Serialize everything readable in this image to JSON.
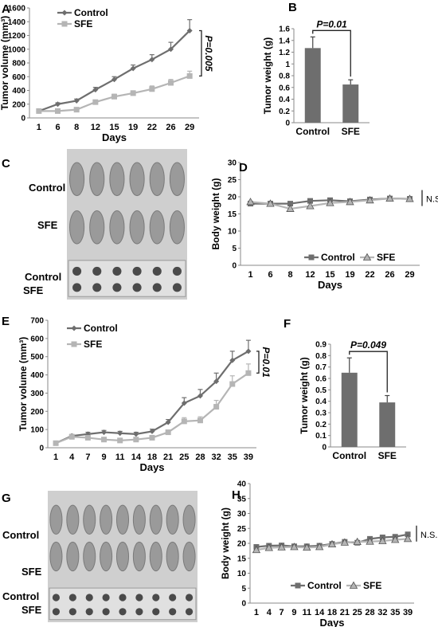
{
  "colors": {
    "control": "#6e6e6e",
    "sfe": "#b5b5b5",
    "axis": "#8a8a8a"
  },
  "panels": [
    {
      "letter": "A",
      "type": "line",
      "xlabel": "Days",
      "ylabel": "Tumor volume (mm³)",
      "annotation": "P=0.005",
      "categories": [
        "1",
        "6",
        "8",
        "12",
        "15",
        "19",
        "22",
        "26",
        "29"
      ],
      "ylim": [
        0,
        1600
      ],
      "yticks": [
        0,
        200,
        400,
        600,
        800,
        1000,
        1200,
        1400,
        1600
      ],
      "series": [
        {
          "name": "Control",
          "marker": "diamond",
          "values": [
            100,
            200,
            250,
            410,
            560,
            720,
            850,
            1000,
            1270
          ],
          "err": [
            0,
            20,
            25,
            35,
            40,
            50,
            70,
            100,
            160
          ]
        },
        {
          "name": "SFE",
          "marker": "square",
          "values": [
            100,
            100,
            120,
            230,
            310,
            360,
            420,
            510,
            610
          ],
          "err": [
            0,
            10,
            15,
            25,
            35,
            35,
            45,
            50,
            70
          ]
        }
      ]
    },
    {
      "letter": "B",
      "type": "bar",
      "ylabel": "Tumor weight (g)",
      "annotation": "P=0.01",
      "categories": [
        "Control",
        "SFE"
      ],
      "values": [
        1.27,
        0.65
      ],
      "err": [
        0.19,
        0.08
      ],
      "ylim": [
        0,
        1.6
      ],
      "yticks": [
        0,
        0.2,
        0.4,
        0.6,
        0.8,
        1,
        1.2,
        1.4,
        1.6
      ]
    },
    {
      "letter": "C",
      "type": "photo",
      "row_labels": [
        "Control",
        "SFE",
        "Control",
        "SFE"
      ]
    },
    {
      "letter": "D",
      "type": "line",
      "xlabel": "Days",
      "ylabel": "Body weight (g)",
      "annotation": "N.S.",
      "categories": [
        "1",
        "6",
        "8",
        "12",
        "15",
        "19",
        "22",
        "26",
        "29"
      ],
      "ylim": [
        0,
        30
      ],
      "yticks": [
        0,
        5,
        10,
        15,
        20,
        25,
        30
      ],
      "series": [
        {
          "name": "Control",
          "marker": "square",
          "values": [
            18.0,
            18.0,
            18.0,
            18.8,
            19.0,
            18.7,
            19.2,
            19.5,
            19.4
          ]
        },
        {
          "name": "SFE",
          "marker": "triangle",
          "values": [
            18.5,
            18.0,
            16.5,
            17.3,
            18.2,
            18.5,
            19.0,
            19.5,
            19.4
          ]
        }
      ]
    },
    {
      "letter": "E",
      "type": "line",
      "xlabel": "Days",
      "ylabel": "Tumor volume (mm³)",
      "annotation": "P=0.01",
      "categories": [
        "1",
        "4",
        "7",
        "9",
        "11",
        "14",
        "18",
        "21",
        "25",
        "28",
        "32",
        "35",
        "39"
      ],
      "ylim": [
        0,
        700
      ],
      "yticks": [
        0,
        100,
        200,
        300,
        400,
        500,
        600,
        700
      ],
      "series": [
        {
          "name": "Control",
          "marker": "diamond",
          "values": [
            25,
            65,
            75,
            85,
            80,
            75,
            90,
            140,
            245,
            285,
            365,
            480,
            530
          ],
          "err": [
            0,
            8,
            10,
            10,
            10,
            10,
            12,
            15,
            30,
            35,
            45,
            50,
            60
          ]
        },
        {
          "name": "SFE",
          "marker": "square",
          "values": [
            25,
            60,
            55,
            45,
            40,
            45,
            55,
            85,
            145,
            150,
            225,
            350,
            410
          ],
          "err": [
            0,
            8,
            10,
            8,
            8,
            8,
            10,
            12,
            20,
            20,
            35,
            45,
            50
          ]
        }
      ]
    },
    {
      "letter": "F",
      "type": "bar",
      "ylabel": "Tumor weight (g)",
      "annotation": "P=0.049",
      "categories": [
        "Control",
        "SFE"
      ],
      "values": [
        0.65,
        0.39
      ],
      "err": [
        0.13,
        0.06
      ],
      "ylim": [
        0,
        0.9
      ],
      "yticks": [
        0,
        0.1,
        0.2,
        0.3,
        0.4,
        0.5,
        0.6,
        0.7,
        0.8,
        0.9
      ]
    },
    {
      "letter": "G",
      "type": "photo",
      "row_labels": [
        "Control",
        "SFE",
        "Control",
        "SFE"
      ]
    },
    {
      "letter": "H",
      "type": "line",
      "xlabel": "Days",
      "ylabel": "Body weight (g)",
      "annotation": "N.S.",
      "categories": [
        "1",
        "4",
        "7",
        "9",
        "11",
        "14",
        "18",
        "21",
        "25",
        "28",
        "32",
        "35",
        "39"
      ],
      "ylim": [
        0,
        40
      ],
      "yticks": [
        0,
        5,
        10,
        15,
        20,
        25,
        30,
        35,
        40
      ],
      "series": [
        {
          "name": "Control",
          "marker": "square",
          "values": [
            18.8,
            19.2,
            19.3,
            19.0,
            19.0,
            19.2,
            19.8,
            20.5,
            20.2,
            21.5,
            22.0,
            22.2,
            23.0
          ]
        },
        {
          "name": "SFE",
          "marker": "triangle",
          "values": [
            17.8,
            18.5,
            18.7,
            18.8,
            18.6,
            18.8,
            19.7,
            20.3,
            20.5,
            20.6,
            20.8,
            21.2,
            21.5
          ]
        }
      ]
    }
  ]
}
